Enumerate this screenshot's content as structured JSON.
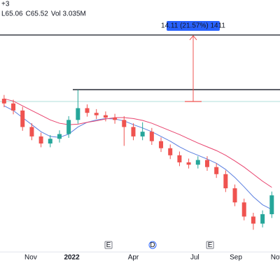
{
  "chart_data": {
    "type": "candlestick",
    "header": "+3",
    "legend_text": [
      "L65.06",
      "C65.52",
      "Vol 3.035M"
    ],
    "x": [
      -0.3,
      0.15,
      0.6,
      1.05,
      1.5,
      1.95,
      2.4,
      2.85,
      3.3,
      3.75,
      4.2,
      4.65,
      5.1,
      5.55,
      6.0,
      6.45,
      6.9,
      7.35,
      7.8,
      8.25,
      8.7,
      9.15,
      9.6,
      10.05,
      10.5,
      10.95,
      11.4,
      11.85,
      12.3,
      12.75
    ],
    "open": [
      66.0,
      65.0,
      63.5,
      60.0,
      58.0,
      56.5,
      57.5,
      58.5,
      61.5,
      64.0,
      63.0,
      62.5,
      62.0,
      61.5,
      60.0,
      58.0,
      59.0,
      57.0,
      55.5,
      54.0,
      52.5,
      52.0,
      53.0,
      51.5,
      50.0,
      47.0,
      44.0,
      41.0,
      39.5,
      41.5
    ],
    "high": [
      66.8,
      65.8,
      64.3,
      60.8,
      58.8,
      58.3,
      59.3,
      62.3,
      67.9,
      64.8,
      63.8,
      63.3,
      62.8,
      62.3,
      60.8,
      61.0,
      59.8,
      57.8,
      56.3,
      54.8,
      53.3,
      53.8,
      53.8,
      52.3,
      50.8,
      47.8,
      44.8,
      41.8,
      42.3,
      46.3
    ],
    "low": [
      64.2,
      62.7,
      59.2,
      57.2,
      55.7,
      55.7,
      56.7,
      57.7,
      60.7,
      62.2,
      61.7,
      61.2,
      60.7,
      56.0,
      57.2,
      57.2,
      56.2,
      54.7,
      53.2,
      51.7,
      51.2,
      51.2,
      50.7,
      49.2,
      46.2,
      43.2,
      40.2,
      38.2,
      38.7,
      40.7
    ],
    "close": [
      65.0,
      63.5,
      60.0,
      58.0,
      56.5,
      57.5,
      58.5,
      61.5,
      64.0,
      63.0,
      62.5,
      62.0,
      61.5,
      60.0,
      58.0,
      59.0,
      57.0,
      55.5,
      54.0,
      52.5,
      52.0,
      53.0,
      51.5,
      50.0,
      47.0,
      44.0,
      41.0,
      39.5,
      41.5,
      45.5
    ],
    "up_color": "#26a69a",
    "down_color": "#ef5350",
    "series": [
      {
        "color": "#5b7fe0",
        "values": [
          64.5,
          63.5,
          62,
          60.5,
          59,
          58,
          57.8,
          58.5,
          60,
          61,
          61.5,
          61.8,
          61.7,
          61.3,
          60.5,
          59.8,
          59,
          58,
          57,
          55.8,
          54.8,
          54,
          53.2,
          52.3,
          51,
          49.3,
          47.3,
          45.2,
          43.5,
          42.5
        ]
      },
      {
        "color": "#e8436e",
        "values": [
          66,
          65.5,
          64.5,
          63.5,
          62.5,
          61.5,
          60.8,
          60.5,
          60.6,
          61,
          61.3,
          61.7,
          62,
          62,
          61.8,
          61.4,
          60.8,
          60,
          59.2,
          58.4,
          57.5,
          56.6,
          55.8,
          55,
          54,
          52.8,
          51.5,
          50,
          48.5,
          47.2
        ]
      }
    ],
    "xlim": [
      -0.5,
      13.15
    ],
    "ylim": [
      33.48,
      86.95
    ],
    "xticks": [
      {
        "value": 1,
        "label": "Nov"
      },
      {
        "value": 3,
        "label": "2022"
      },
      {
        "value": 6,
        "label": "Apr"
      },
      {
        "value": 9,
        "label": "Jul"
      },
      {
        "value": 11,
        "label": "Sep"
      },
      {
        "value": 13,
        "label": "Nov"
      }
    ],
    "events": [
      {
        "label": "E",
        "x": 4.79
      },
      {
        "label": "D",
        "x": 6.94
      },
      {
        "label": "E",
        "x": 9.74
      }
    ],
    "annotations": {
      "measure_label": "14.11 (21.57%) 1411",
      "measure_from": 65.41,
      "measure_to": 79.52,
      "level": 67.93
    }
  }
}
